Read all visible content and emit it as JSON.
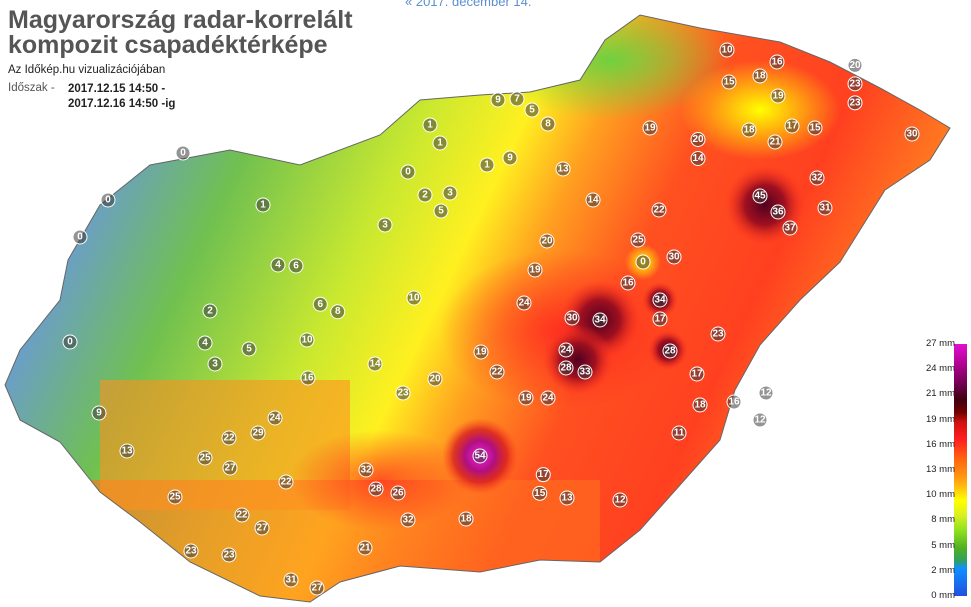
{
  "header": {
    "prev_link": "« 2017. december 14.",
    "title": "Magyarország radar-korrelált kompozit csapadéktérképe",
    "subtitle": "Az Időkép.hu vizualizációjában",
    "period_label": "Időszak -",
    "period_from": "2017.12.15 14:50 -",
    "period_to": "2017.12.16 14:50 -ig"
  },
  "map": {
    "unit": "mm",
    "stations": [
      "0",
      "0",
      "0",
      "0",
      "1",
      "1",
      "1",
      "0",
      "2",
      "3",
      "3",
      "5",
      "9",
      "7",
      "5",
      "8",
      "9",
      "1",
      "13",
      "14",
      "10",
      "15",
      "16",
      "18",
      "19",
      "20",
      "23",
      "23",
      "19",
      "20",
      "14",
      "18",
      "21",
      "17",
      "15",
      "30",
      "32",
      "45",
      "36",
      "37",
      "31",
      "22",
      "25",
      "0",
      "30",
      "34",
      "16",
      "20",
      "24",
      "19",
      "30",
      "34",
      "17",
      "28",
      "23",
      "24",
      "28",
      "33",
      "22",
      "19",
      "23",
      "20",
      "24",
      "17",
      "18",
      "16",
      "12",
      "11",
      "19",
      "54",
      "26",
      "28",
      "32",
      "32",
      "29",
      "25",
      "27",
      "25",
      "22",
      "22",
      "27",
      "23",
      "23",
      "31",
      "27",
      "21",
      "18",
      "13",
      "12",
      "15",
      "17",
      "24",
      "12",
      "10",
      "8",
      "5",
      "4",
      "3",
      "2",
      "6",
      "4",
      "9",
      "13",
      "6",
      "16",
      "14",
      "22",
      "10"
    ]
  },
  "legend": {
    "labels": [
      "27 mm",
      "24 mm",
      "21 mm",
      "19 mm",
      "16 mm",
      "13 mm",
      "10 mm",
      "8 mm",
      "5 mm",
      "2 mm",
      "0 mm"
    ],
    "colors": [
      "#e010d0",
      "#400010",
      "#d01010",
      "#ff6010",
      "#ffff00",
      "#90e020",
      "#1090ff",
      "#2050e0"
    ]
  }
}
